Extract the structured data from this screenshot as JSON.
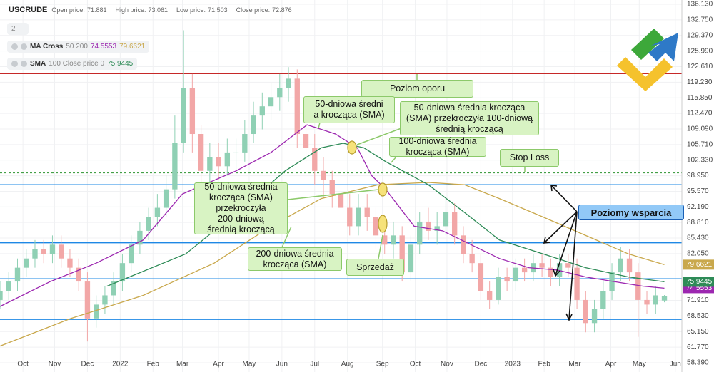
{
  "header": {
    "symbol": "USCRUDE",
    "ohlc": [
      {
        "label": "Open price:",
        "value": 71.881
      },
      {
        "label": "High price:",
        "value": 73.061
      },
      {
        "label": "Low price:",
        "value": 71.503
      },
      {
        "label": "Close price:",
        "value": 72.876
      }
    ],
    "indicator_count": "2"
  },
  "legend": [
    {
      "name": "MA Cross",
      "params": "50 200"
    },
    {
      "name": "SMA",
      "params": "100 Close price 0"
    }
  ],
  "chart_data": {
    "type": "candlestick",
    "xlim": [
      0,
      624
    ],
    "xticks": [
      {
        "value": 21,
        "label": "Oct"
      },
      {
        "value": 50,
        "label": "Nov"
      },
      {
        "value": 80,
        "label": "Dec"
      },
      {
        "value": 110,
        "label": "2022"
      },
      {
        "value": 140,
        "label": "Feb"
      },
      {
        "value": 167,
        "label": "Mar"
      },
      {
        "value": 200,
        "label": "Apr"
      },
      {
        "value": 228,
        "label": "May"
      },
      {
        "value": 258,
        "label": "Jun"
      },
      {
        "value": 288,
        "label": "Jul"
      },
      {
        "value": 318,
        "label": "Aug"
      },
      {
        "value": 350,
        "label": "Sep"
      },
      {
        "value": 380,
        "label": "Oct"
      },
      {
        "value": 409,
        "label": "Nov"
      },
      {
        "value": 440,
        "label": "Dec"
      },
      {
        "value": 469,
        "label": "2023"
      },
      {
        "value": 498,
        "label": "Feb"
      },
      {
        "value": 526,
        "label": "Mar"
      },
      {
        "value": 559,
        "label": "Apr"
      },
      {
        "value": 585,
        "label": "May"
      },
      {
        "value": 618,
        "label": "Jun"
      }
    ],
    "ylim": [
      56.38,
      137.06
    ],
    "yticks": [
      {
        "value": 136.13,
        "label": "136.130"
      },
      {
        "value": 132.75,
        "label": "132.750"
      },
      {
        "value": 129.37,
        "label": "129.370"
      },
      {
        "value": 125.99,
        "label": "125.990"
      },
      {
        "value": 122.61,
        "label": "122.610"
      },
      {
        "value": 119.23,
        "label": "119.230"
      },
      {
        "value": 115.85,
        "label": "115.850"
      },
      {
        "value": 112.47,
        "label": "112.470"
      },
      {
        "value": 109.09,
        "label": "109.090"
      },
      {
        "value": 105.71,
        "label": "105.710"
      },
      {
        "value": 102.33,
        "label": "102.330"
      },
      {
        "value": 98.95,
        "label": "98.950"
      },
      {
        "value": 95.57,
        "label": "95.570"
      },
      {
        "value": 92.19,
        "label": "92.190"
      },
      {
        "value": 88.81,
        "label": "88.810"
      },
      {
        "value": 85.43,
        "label": "85.430"
      },
      {
        "value": 82.05,
        "label": "82.050"
      },
      {
        "value": 71.91,
        "label": "71.910"
      },
      {
        "value": 68.53,
        "label": "68.530"
      },
      {
        "value": 65.15,
        "label": "65.150"
      },
      {
        "value": 61.77,
        "label": "61.770"
      },
      {
        "value": 58.39,
        "label": "58.390"
      }
    ],
    "grid": true,
    "up_color": "#8fd0b4",
    "down_color": "#f2a7a7",
    "candles": {
      "x": [
        0,
        8,
        16,
        24,
        32,
        40,
        48,
        56,
        64,
        72,
        80,
        88,
        96,
        104,
        112,
        120,
        128,
        136,
        144,
        152,
        160,
        168,
        176,
        184,
        192,
        200,
        208,
        216,
        224,
        232,
        240,
        248,
        256,
        264,
        272,
        280,
        288,
        296,
        304,
        312,
        320,
        328,
        336,
        344,
        352,
        360,
        368,
        376,
        384,
        392,
        400,
        408,
        416,
        424,
        432,
        440,
        448,
        456,
        464,
        472,
        480,
        488,
        496,
        504,
        512,
        520,
        528,
        536,
        544,
        552,
        560,
        568,
        576,
        584,
        592,
        600,
        608
      ],
      "open": [
        72,
        74,
        76,
        79,
        81,
        83,
        82,
        84,
        81,
        79,
        76,
        68,
        71,
        73,
        76,
        80,
        84,
        87,
        90,
        92,
        96,
        106,
        118,
        108,
        100,
        103,
        101,
        104,
        104,
        108,
        112,
        114,
        116,
        118,
        120,
        108,
        105,
        100,
        98,
        95,
        92,
        88,
        92,
        90,
        86,
        84,
        86,
        78,
        84,
        89,
        87,
        88,
        91,
        86,
        82,
        80,
        74,
        72,
        77,
        76,
        79,
        78,
        80,
        79,
        77,
        80,
        79,
        72,
        67,
        70,
        74,
        78,
        81,
        78,
        72,
        71,
        71.881
      ],
      "high": [
        76,
        78,
        81,
        83,
        85,
        85,
        86,
        86,
        83,
        81,
        78,
        73,
        75,
        78,
        82,
        86,
        89,
        92,
        95,
        99,
        112,
        130.5,
        121,
        110,
        106,
        106,
        107,
        107,
        111,
        115,
        117,
        119,
        121,
        122.5,
        122,
        111,
        108,
        103,
        100,
        97,
        95,
        95,
        95,
        92,
        89,
        89,
        88,
        86,
        91,
        92,
        91,
        94,
        93,
        88,
        85,
        82,
        76,
        79,
        79,
        81,
        81,
        82,
        82,
        81,
        82,
        82,
        81,
        74,
        72,
        76,
        80,
        83.5,
        83,
        80,
        74,
        75,
        73.061
      ],
      "low": [
        70,
        72,
        74,
        77,
        79,
        80,
        80,
        79,
        77,
        74,
        63,
        66,
        69,
        71,
        74,
        78,
        82,
        85,
        88,
        90,
        94,
        104,
        104,
        96,
        97,
        98,
        99,
        100,
        102,
        106,
        109,
        111,
        113,
        115,
        105,
        102,
        97,
        94,
        92,
        89,
        86,
        86,
        87,
        83,
        82,
        81,
        76,
        76,
        82,
        85,
        84,
        86,
        84,
        80,
        78,
        72,
        70,
        71,
        74,
        74,
        76,
        76,
        77,
        75,
        75,
        77,
        70,
        65,
        65,
        68,
        72,
        76,
        76,
        64,
        69,
        69,
        71.503
      ],
      "close": [
        74,
        76,
        79,
        81,
        83,
        82,
        84,
        81,
        79,
        76,
        68,
        71,
        73,
        76,
        80,
        84,
        87,
        90,
        92,
        96,
        106,
        118,
        108,
        100,
        103,
        101,
        104,
        104,
        108,
        112,
        114,
        116,
        118,
        120,
        108,
        105,
        100,
        98,
        95,
        92,
        88,
        92,
        90,
        86,
        84,
        86,
        78,
        84,
        89,
        87,
        88,
        91,
        86,
        82,
        80,
        74,
        72,
        77,
        76,
        79,
        78,
        80,
        79,
        77,
        80,
        79,
        72,
        67,
        70,
        74,
        78,
        81,
        78,
        72,
        71,
        73,
        72.876
      ]
    },
    "series": [
      {
        "color": "#9c27b0",
        "x": [
          0,
          46,
          88,
          131,
          167,
          216,
          248,
          281,
          294,
          307,
          327,
          340,
          353,
          379,
          405,
          431,
          457,
          484,
          510,
          536,
          562,
          588,
          608
        ],
        "values": [
          70.6,
          76,
          80,
          85,
          95,
          100,
          104,
          110,
          109,
          108,
          105,
          99,
          96,
          88,
          87,
          84,
          81,
          79,
          78.5,
          77,
          76,
          75,
          74.5553
        ]
      },
      {
        "color": "#c9a84c",
        "x": [
          0,
          65,
          131,
          196,
          248,
          294,
          346,
          392,
          425,
          457,
          497,
          536,
          575,
          608
        ],
        "values": [
          62,
          68,
          73,
          80,
          88,
          94,
          97,
          97.5,
          97,
          94,
          90,
          86,
          82,
          79.6621
        ]
      },
      {
        "color": "#2e8b57",
        "x": [
          98,
          170,
          222,
          261,
          294,
          314,
          333,
          353,
          392,
          425,
          457,
          497,
          536,
          575,
          608
        ],
        "values": [
          75,
          82,
          92,
          100,
          105,
          106,
          105,
          102,
          97,
          91,
          85,
          82,
          79,
          77,
          75.9445
        ]
      }
    ],
    "levels": [
      {
        "value": 121.1,
        "color": "#c62828",
        "style": "solid"
      },
      {
        "value": 99.6,
        "color": "#43a047",
        "style": "dashed"
      },
      {
        "value": 97.0,
        "color": "#1e88e5",
        "style": "solid"
      },
      {
        "value": 84.4,
        "color": "#1e88e5",
        "style": "solid"
      },
      {
        "value": 76.6,
        "color": "#1e88e5",
        "style": "solid"
      },
      {
        "value": 67.8,
        "color": "#1e88e5",
        "style": "solid"
      }
    ],
    "annotations": [
      "Poziom oporu",
      "50-dniowa średni\na krocząca (SMA)",
      "50-dniowa średnia krocząca\n(SMA) przekroczyła 100-dniową\nśrednią kroczącą",
      "100-dniowa średnia\nkrocząca (SMA)",
      "Stop Loss",
      "50-dniowa średnia\nkrocząca (SMA)\nprzekroczyła\n200-dniową\nśrednią kroczącą",
      "200-dniowa średnia\nkrocząca (SMA)",
      "Sprzedaż",
      "Poziomy wsparcia"
    ]
  }
}
